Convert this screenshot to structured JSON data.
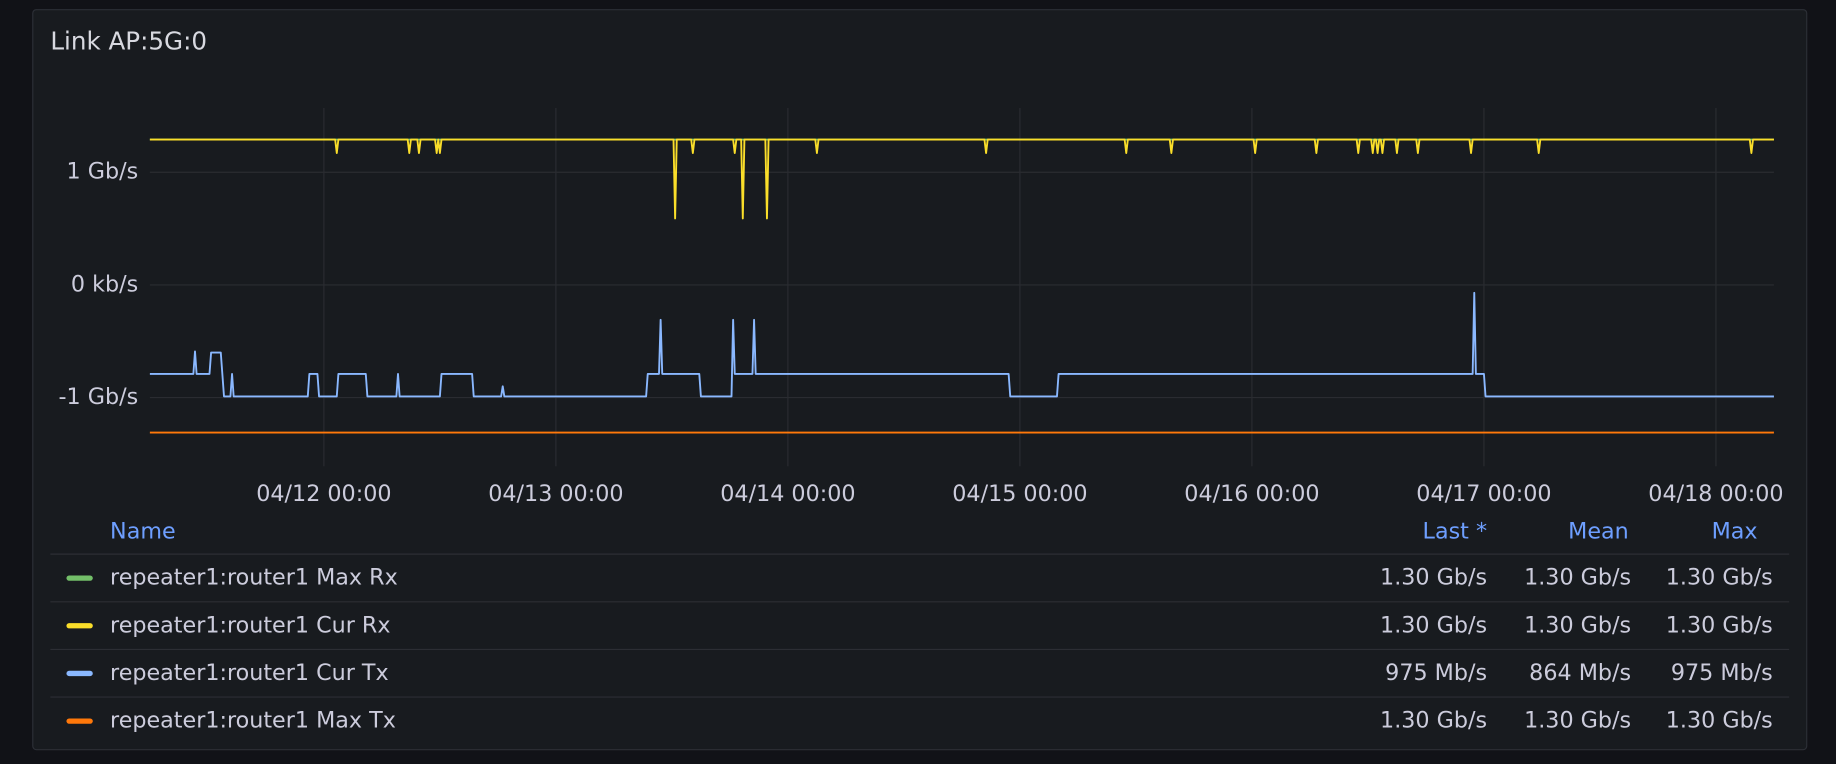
{
  "chart_data": {
    "type": "line",
    "title": "Link AP:5G:0",
    "xlim": [
      "04/11 06:00",
      "04/18 06:00"
    ],
    "xticks": [
      "04/12 00:00",
      "04/13 00:00",
      "04/14 00:00",
      "04/15 00:00",
      "04/16 00:00",
      "04/17 00:00",
      "04/18 00:00"
    ],
    "ylim": [
      -1.61,
      1.57
    ],
    "yticks": [
      {
        "value": 1,
        "label": "1 Gb/s"
      },
      {
        "value": 0,
        "label": "0 kb/s"
      },
      {
        "value": -1,
        "label": "-1 Gb/s"
      }
    ],
    "grid": true,
    "series": [
      {
        "name": "repeater1:router1 Max Rx",
        "color": "#73bf69",
        "x": [
          "04/11 06:00",
          "04/18 06:00"
        ],
        "values": [
          1.29,
          1.29
        ]
      },
      {
        "name": "repeater1:router1 Cur Rx",
        "color": "#fade2a",
        "x": [
          "04/11 06:00",
          "04/12 01:10",
          "04/12 01:20",
          "04/12 01:30",
          "04/12 08:40",
          "04/12 08:50",
          "04/12 09:00",
          "04/12 09:40",
          "04/12 09:50",
          "04/12 10:00",
          "04/12 11:30",
          "04/12 11:40",
          "04/12 11:50",
          "04/12 12:00",
          "04/12 12:10",
          "04/13 12:10",
          "04/13 12:20",
          "04/13 12:30",
          "04/13 14:00",
          "04/13 14:10",
          "04/13 14:20",
          "04/13 18:20",
          "04/13 18:30",
          "04/13 18:40",
          "04/13 19:10",
          "04/13 19:20",
          "04/13 19:30",
          "04/13 21:40",
          "04/13 21:50",
          "04/13 22:00",
          "04/14 02:50",
          "04/14 03:00",
          "04/14 03:10",
          "04/14 20:20",
          "04/14 20:30",
          "04/14 20:40",
          "04/15 10:50",
          "04/15 11:00",
          "04/15 11:10",
          "04/15 15:30",
          "04/15 15:40",
          "04/15 15:50",
          "04/16 00:10",
          "04/16 00:20",
          "04/16 00:30",
          "04/16 06:30",
          "04/16 06:40",
          "04/16 06:50",
          "04/16 10:50",
          "04/16 11:00",
          "04/16 11:10",
          "04/16 12:20",
          "04/16 12:30",
          "04/16 12:40",
          "04/16 12:50",
          "04/16 13:00",
          "04/16 13:10",
          "04/16 13:20",
          "04/16 13:30",
          "04/16 13:40",
          "04/16 14:50",
          "04/16 15:00",
          "04/16 15:10",
          "04/16 17:00",
          "04/16 17:10",
          "04/16 17:20",
          "04/16 22:30",
          "04/16 22:40",
          "04/16 22:50",
          "04/17 05:30",
          "04/17 05:40",
          "04/17 05:50",
          "04/18 03:30",
          "04/18 03:40",
          "04/18 03:50",
          "04/18 06:00"
        ],
        "values": [
          1.29,
          1.29,
          1.17,
          1.29,
          1.29,
          1.17,
          1.29,
          1.29,
          1.17,
          1.29,
          1.29,
          1.17,
          1.29,
          1.17,
          1.29,
          1.29,
          0.59,
          1.29,
          1.29,
          1.17,
          1.29,
          1.29,
          1.17,
          1.29,
          1.29,
          0.59,
          1.29,
          1.29,
          0.59,
          1.29,
          1.29,
          1.17,
          1.29,
          1.29,
          1.17,
          1.29,
          1.29,
          1.17,
          1.29,
          1.29,
          1.17,
          1.29,
          1.29,
          1.17,
          1.29,
          1.29,
          1.17,
          1.29,
          1.29,
          1.17,
          1.29,
          1.29,
          1.17,
          1.29,
          1.29,
          1.17,
          1.29,
          1.29,
          1.17,
          1.29,
          1.29,
          1.17,
          1.29,
          1.29,
          1.17,
          1.29,
          1.29,
          1.17,
          1.29,
          1.29,
          1.17,
          1.29,
          1.29,
          1.17,
          1.29,
          1.29
        ]
      },
      {
        "name": "repeater1:router1 Cur Tx",
        "color": "#8ab8ff",
        "x": [
          "04/11 06:00",
          "04/11 10:30",
          "04/11 10:40",
          "04/11 10:50",
          "04/11 12:10",
          "04/11 12:20",
          "04/11 13:20",
          "04/11 13:40",
          "04/11 14:20",
          "04/11 14:30",
          "04/11 14:40",
          "04/11 22:20",
          "04/11 22:30",
          "04/11 23:20",
          "04/11 23:30",
          "04/12 01:20",
          "04/12 01:30",
          "04/12 04:20",
          "04/12 04:30",
          "04/12 07:30",
          "04/12 07:40",
          "04/12 07:50",
          "04/12 12:00",
          "04/12 12:10",
          "04/12 15:20",
          "04/12 15:30",
          "04/12 18:20",
          "04/12 18:30",
          "04/12 18:40",
          "04/13 09:20",
          "04/13 09:30",
          "04/13 10:40",
          "04/13 10:50",
          "04/13 11:00",
          "04/13 14:50",
          "04/13 15:00",
          "04/13 18:10",
          "04/13 18:20",
          "04/13 18:30",
          "04/13 20:20",
          "04/13 20:30",
          "04/13 20:40",
          "04/14 22:50",
          "04/14 23:00",
          "04/15 03:50",
          "04/15 04:00",
          "04/16 22:50",
          "04/16 23:00",
          "04/16 23:10",
          "04/17 00:00",
          "04/17 00:10",
          "04/18 06:00"
        ],
        "values": [
          -0.79,
          -0.79,
          -0.59,
          -0.79,
          -0.79,
          -0.6,
          -0.6,
          -0.99,
          -0.99,
          -0.79,
          -0.99,
          -0.99,
          -0.79,
          -0.79,
          -0.99,
          -0.99,
          -0.79,
          -0.79,
          -0.99,
          -0.99,
          -0.79,
          -0.99,
          -0.99,
          -0.79,
          -0.79,
          -0.99,
          -0.99,
          -0.9,
          -0.99,
          -0.99,
          -0.79,
          -0.79,
          -0.31,
          -0.79,
          -0.79,
          -0.99,
          -0.99,
          -0.31,
          -0.79,
          -0.79,
          -0.31,
          -0.79,
          -0.79,
          -0.99,
          -0.99,
          -0.79,
          -0.79,
          -0.07,
          -0.79,
          -0.79,
          -0.99,
          -0.99
        ]
      },
      {
        "name": "repeater1:router1 Max Tx",
        "color": "#ff780a",
        "x": [
          "04/11 06:00",
          "04/18 06:00"
        ],
        "values": [
          -1.31,
          -1.31
        ]
      }
    ],
    "legend_table": {
      "columns": [
        "Name",
        "Last *",
        "Mean",
        "Max"
      ],
      "rows": [
        [
          "1.30 Gb/s",
          "1.30 Gb/s",
          "1.30 Gb/s"
        ],
        [
          "1.30 Gb/s",
          "1.30 Gb/s",
          "1.30 Gb/s"
        ],
        [
          "975 Mb/s",
          "864 Mb/s",
          "975 Mb/s"
        ],
        [
          "1.30 Gb/s",
          "1.30 Gb/s",
          "1.30 Gb/s"
        ]
      ]
    }
  }
}
